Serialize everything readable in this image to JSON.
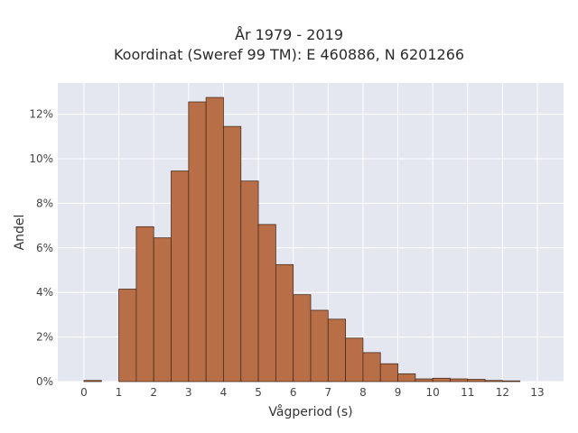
{
  "header": {
    "title_line1": "År 1979 - 2019",
    "title_line2": "Koordinat (Sweref 99 TM): E 460886, N 6201266"
  },
  "colors": {
    "plot_background": "#e5e7f0",
    "grid": "#ffffff",
    "bar_fill": "#b86f48",
    "bar_edge": "#4a2e1e"
  },
  "chart_data": {
    "type": "bar",
    "xlabel": "Vågperiod (s)",
    "ylabel": "Andel",
    "grid": true,
    "xlim": [
      -0.75,
      13.75
    ],
    "ylim": [
      0,
      13.4
    ],
    "xticks": [
      0,
      1,
      2,
      3,
      4,
      5,
      6,
      7,
      8,
      9,
      10,
      11,
      12,
      13
    ],
    "yticks": [
      0,
      2,
      4,
      6,
      8,
      10,
      12
    ],
    "ytick_labels": [
      "0%",
      "2%",
      "4%",
      "6%",
      "8%",
      "10%",
      "12%"
    ],
    "bin_width": 0.5,
    "bin_starts": [
      0,
      1,
      1.5,
      2,
      2.5,
      3,
      3.5,
      4,
      4.5,
      5,
      5.5,
      6,
      6.5,
      7,
      7.5,
      8,
      8.5,
      9,
      9.5,
      10,
      10.5,
      11,
      11.5,
      12
    ],
    "values": [
      0.05,
      4.15,
      6.95,
      6.45,
      9.45,
      12.55,
      12.75,
      11.45,
      9.0,
      7.05,
      5.25,
      3.9,
      3.2,
      2.8,
      1.95,
      1.3,
      0.8,
      0.35,
      0.12,
      0.15,
      0.12,
      0.1,
      0.05,
      0.03
    ]
  }
}
